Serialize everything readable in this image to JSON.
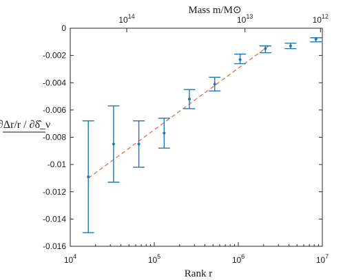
{
  "chart_data": {
    "type": "scatter",
    "title": "",
    "xlabel": "Rank r",
    "ylabel": "∂Δr/r / ∂δ̂_ν",
    "x_scale": "log",
    "xlim": [
      10000,
      10000000
    ],
    "ylim": [
      -0.016,
      0
    ],
    "x_ticks": [
      {
        "label_base": "10",
        "label_exp": "4",
        "value": 10000
      },
      {
        "label_base": "10",
        "label_exp": "5",
        "value": 100000
      },
      {
        "label_base": "10",
        "label_exp": "6",
        "value": 1000000
      },
      {
        "label_base": "10",
        "label_exp": "7",
        "value": 10000000
      }
    ],
    "y_ticks": [
      {
        "label": "0",
        "value": 0
      },
      {
        "label": "-0.002",
        "value": -0.002
      },
      {
        "label": "-0.004",
        "value": -0.004
      },
      {
        "label": "-0.006",
        "value": -0.006
      },
      {
        "label": "-0.008",
        "value": -0.008
      },
      {
        "label": "-0.01",
        "value": -0.01
      },
      {
        "label": "-0.012",
        "value": -0.012
      },
      {
        "label": "-0.014",
        "value": -0.014
      },
      {
        "label": "-0.016",
        "value": -0.016
      }
    ],
    "top_axis": {
      "label": "Mass m/M⊙",
      "ticks": [
        {
          "label_base": "10",
          "label_exp": "14",
          "x_position_rank": 47000
        },
        {
          "label_base": "10",
          "label_exp": "13",
          "x_position_rank": 1200000
        },
        {
          "label_base": "10",
          "label_exp": "12",
          "x_position_rank": 9500000
        }
      ]
    },
    "series": [
      {
        "points": [
          {
            "x": 16400,
            "y": -0.0109,
            "y_low": -0.015,
            "y_high": -0.0068
          },
          {
            "x": 32800,
            "y": -0.0085,
            "y_low": -0.0113,
            "y_high": -0.0057
          },
          {
            "x": 65500,
            "y": -0.0085,
            "y_low": -0.0102,
            "y_high": -0.0068
          },
          {
            "x": 131000,
            "y": -0.0077,
            "y_low": -0.0088,
            "y_high": -0.0066
          },
          {
            "x": 262000,
            "y": -0.0052,
            "y_low": -0.0059,
            "y_high": -0.0045
          },
          {
            "x": 524000,
            "y": -0.0041,
            "y_low": -0.0046,
            "y_high": -0.0036
          },
          {
            "x": 1050000,
            "y": -0.0023,
            "y_low": -0.0026,
            "y_high": -0.0019
          },
          {
            "x": 2100000,
            "y": -0.0015,
            "y_low": -0.0018,
            "y_high": -0.0013
          },
          {
            "x": 4190000,
            "y": -0.0013,
            "y_low": -0.0015,
            "y_high": -0.0011
          },
          {
            "x": 8390000,
            "y": -0.0008,
            "y_low": -0.001,
            "y_high": -0.0007
          }
        ]
      }
    ],
    "fit_line": {
      "x": [
        16400,
        2300000
      ],
      "y": [
        -0.011,
        -0.0013
      ]
    },
    "colors": {
      "points": "#1f77b4",
      "fit": "#e8774f",
      "axis": "#262626"
    },
    "grid": false
  }
}
